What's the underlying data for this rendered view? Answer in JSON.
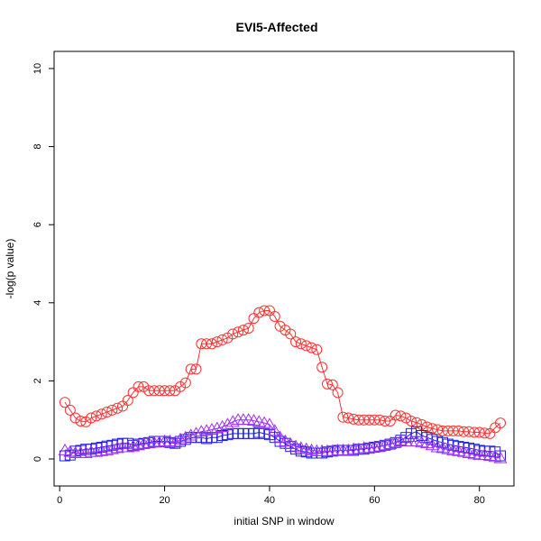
{
  "chart_data": {
    "type": "scatter",
    "title": "EVI5-Affected",
    "xlabel": "initial SNP in window",
    "ylabel": "-log(p value)",
    "xlim": [
      1,
      84
    ],
    "ylim": [
      0,
      10
    ],
    "x_ticks": [
      0,
      20,
      40,
      60,
      80
    ],
    "y_ticks": [
      0,
      2,
      4,
      6,
      8,
      10
    ],
    "grid": false,
    "legend": "none",
    "series": [
      {
        "marker": "circle",
        "color": "#ff3030",
        "connected": true,
        "x": [
          1,
          2,
          3,
          4,
          5,
          6,
          7,
          8,
          9,
          10,
          11,
          12,
          13,
          14,
          15,
          16,
          17,
          18,
          19,
          20,
          21,
          22,
          23,
          24,
          25,
          26,
          27,
          28,
          29,
          30,
          31,
          32,
          33,
          34,
          35,
          36,
          37,
          38,
          39,
          40,
          41,
          42,
          43,
          44,
          45,
          46,
          47,
          48,
          49,
          50,
          51,
          52,
          53,
          54,
          55,
          56,
          57,
          58,
          59,
          60,
          61,
          62,
          63,
          64,
          65,
          66,
          67,
          68,
          69,
          70,
          71,
          72,
          73,
          74,
          75,
          76,
          77,
          78,
          79,
          80,
          81,
          82,
          83,
          84
        ],
        "values": [
          1.45,
          1.25,
          1.05,
          0.97,
          0.95,
          1.05,
          1.1,
          1.15,
          1.2,
          1.25,
          1.3,
          1.35,
          1.5,
          1.7,
          1.85,
          1.85,
          1.75,
          1.75,
          1.75,
          1.75,
          1.75,
          1.75,
          1.85,
          1.95,
          2.3,
          2.3,
          2.95,
          2.95,
          2.95,
          3.0,
          3.05,
          3.1,
          3.2,
          3.25,
          3.3,
          3.35,
          3.6,
          3.75,
          3.8,
          3.8,
          3.65,
          3.4,
          3.3,
          3.2,
          3.0,
          2.95,
          2.9,
          2.85,
          2.8,
          2.35,
          1.92,
          1.9,
          1.7,
          1.07,
          1.05,
          1.02,
          1.0,
          1.0,
          1.0,
          1.0,
          1.0,
          0.97,
          0.97,
          1.12,
          1.1,
          1.05,
          0.97,
          0.93,
          0.88,
          0.82,
          0.78,
          0.75,
          0.72,
          0.72,
          0.72,
          0.72,
          0.7,
          0.7,
          0.68,
          0.68,
          0.66,
          0.65,
          0.8,
          0.92
        ]
      },
      {
        "marker": "square",
        "color": "#2020e0",
        "connected": true,
        "x": [
          1,
          2,
          3,
          4,
          5,
          6,
          7,
          8,
          9,
          10,
          11,
          12,
          13,
          14,
          15,
          16,
          17,
          18,
          19,
          20,
          21,
          22,
          23,
          24,
          25,
          26,
          27,
          28,
          29,
          30,
          31,
          32,
          33,
          34,
          35,
          36,
          37,
          38,
          39,
          40,
          41,
          42,
          43,
          44,
          45,
          46,
          47,
          48,
          49,
          50,
          51,
          52,
          53,
          54,
          55,
          56,
          57,
          58,
          59,
          60,
          61,
          62,
          63,
          64,
          65,
          66,
          67,
          68,
          69,
          70,
          71,
          72,
          73,
          74,
          75,
          76,
          77,
          78,
          79,
          80,
          81,
          82,
          83,
          84
        ],
        "values": [
          0.08,
          0.1,
          0.2,
          0.22,
          0.25,
          0.25,
          0.28,
          0.3,
          0.33,
          0.35,
          0.38,
          0.4,
          0.4,
          0.35,
          0.38,
          0.4,
          0.42,
          0.45,
          0.45,
          0.45,
          0.42,
          0.4,
          0.45,
          0.5,
          0.55,
          0.55,
          0.55,
          0.52,
          0.55,
          0.55,
          0.6,
          0.62,
          0.65,
          0.65,
          0.65,
          0.65,
          0.65,
          0.68,
          0.65,
          0.62,
          0.55,
          0.45,
          0.4,
          0.32,
          0.25,
          0.2,
          0.18,
          0.15,
          0.15,
          0.15,
          0.18,
          0.2,
          0.22,
          0.22,
          0.22,
          0.22,
          0.25,
          0.25,
          0.28,
          0.3,
          0.32,
          0.35,
          0.38,
          0.42,
          0.48,
          0.55,
          0.65,
          0.7,
          0.6,
          0.55,
          0.5,
          0.45,
          0.42,
          0.38,
          0.35,
          0.32,
          0.3,
          0.28,
          0.25,
          0.22,
          0.2,
          0.2,
          0.18,
          0.08
        ]
      },
      {
        "marker": "triangle",
        "color": "#9b30ff",
        "connected": true,
        "x": [
          1,
          2,
          3,
          4,
          5,
          6,
          7,
          8,
          9,
          10,
          11,
          12,
          13,
          14,
          15,
          16,
          17,
          18,
          19,
          20,
          21,
          22,
          23,
          24,
          25,
          26,
          27,
          28,
          29,
          30,
          31,
          32,
          33,
          34,
          35,
          36,
          37,
          38,
          39,
          40,
          41,
          42,
          43,
          44,
          45,
          46,
          47,
          48,
          49,
          50,
          51,
          52,
          53,
          54,
          55,
          56,
          57,
          58,
          59,
          60,
          61,
          62,
          63,
          64,
          65,
          66,
          67,
          68,
          69,
          70,
          71,
          72,
          73,
          74,
          75,
          76,
          77,
          78,
          79,
          80,
          81,
          82,
          83,
          84
        ],
        "values": [
          0.22,
          0.18,
          0.15,
          0.15,
          0.15,
          0.18,
          0.18,
          0.2,
          0.22,
          0.25,
          0.28,
          0.3,
          0.3,
          0.32,
          0.35,
          0.38,
          0.4,
          0.42,
          0.42,
          0.45,
          0.45,
          0.42,
          0.5,
          0.55,
          0.6,
          0.65,
          0.7,
          0.72,
          0.75,
          0.78,
          0.82,
          0.88,
          0.95,
          1.0,
          1.0,
          1.0,
          0.98,
          0.95,
          0.92,
          0.88,
          0.72,
          0.55,
          0.45,
          0.38,
          0.32,
          0.28,
          0.25,
          0.22,
          0.2,
          0.2,
          0.2,
          0.2,
          0.22,
          0.22,
          0.22,
          0.25,
          0.25,
          0.28,
          0.28,
          0.3,
          0.32,
          0.35,
          0.38,
          0.42,
          0.45,
          0.45,
          0.45,
          0.45,
          0.42,
          0.4,
          0.35,
          0.3,
          0.28,
          0.25,
          0.22,
          0.2,
          0.18,
          0.15,
          0.12,
          0.1,
          0.1,
          0.08,
          0.05,
          0.02
        ]
      }
    ]
  }
}
